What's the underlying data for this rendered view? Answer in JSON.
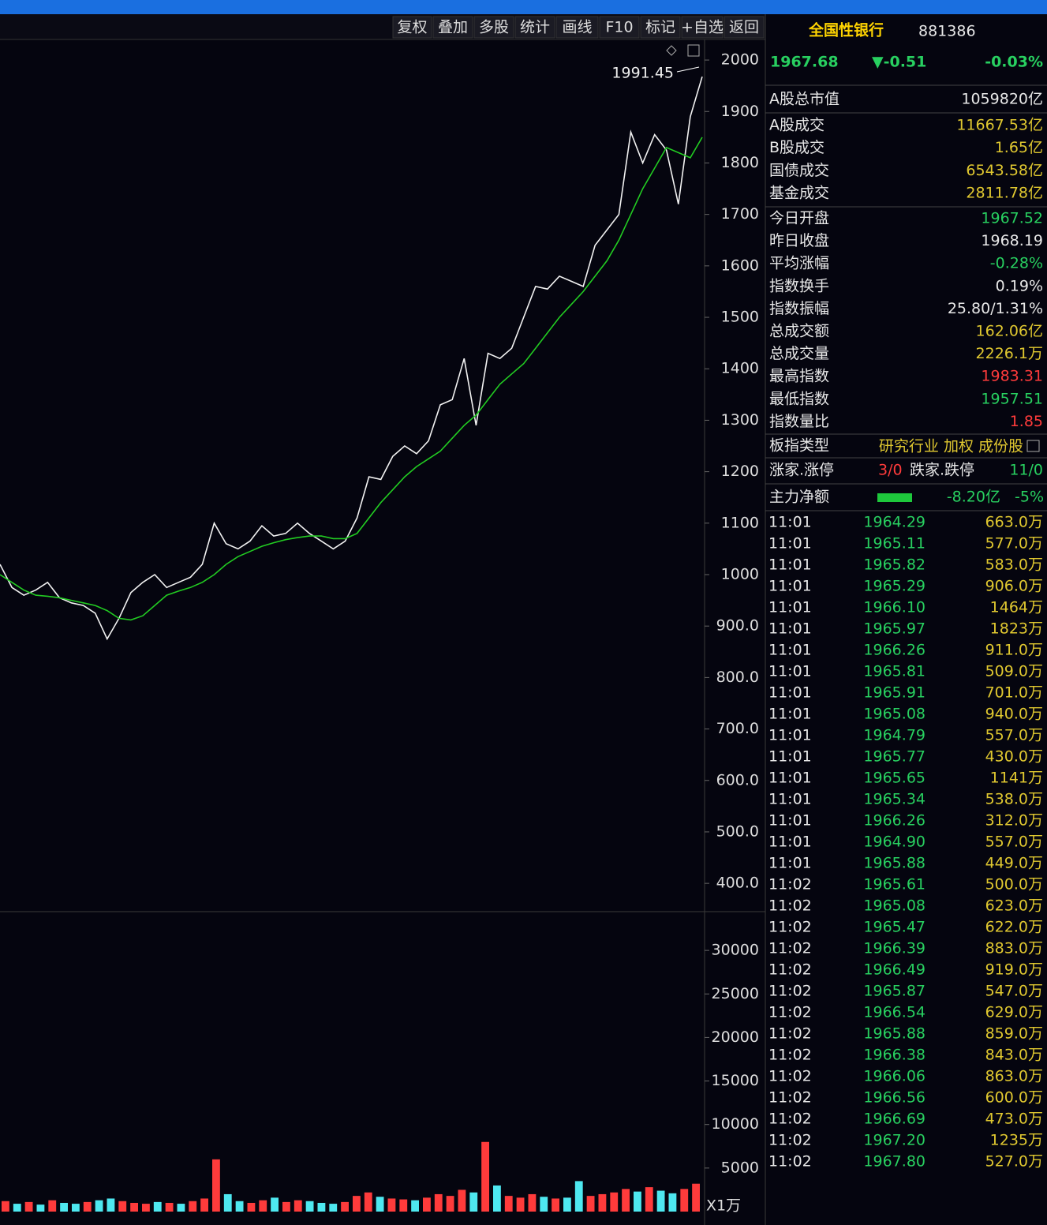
{
  "toolbar": [
    "复权",
    "叠加",
    "多股",
    "统计",
    "画线",
    "F10",
    "标记",
    "+自选",
    "返回"
  ],
  "quote": {
    "name": "全国性银行",
    "code": "881386",
    "price": "1967.68",
    "change": "▼-0.51",
    "change_pct": "-0.03%"
  },
  "stats": [
    {
      "label": "A股总市值",
      "value": "1059820亿",
      "color": "#e8e8e8"
    },
    {
      "label": "A股成交",
      "value": "11667.53亿",
      "color": "#e0c830"
    },
    {
      "label": "B股成交",
      "value": "1.65亿",
      "color": "#e0c830"
    },
    {
      "label": "国债成交",
      "value": "6543.58亿",
      "color": "#e0c830"
    },
    {
      "label": "基金成交",
      "value": "2811.78亿",
      "color": "#e0c830"
    },
    {
      "label": "今日开盘",
      "value": "1967.52",
      "color": "#28d060"
    },
    {
      "label": "昨日收盘",
      "value": "1968.19",
      "color": "#e8e8e8"
    },
    {
      "label": "平均涨幅",
      "value": "-0.28%",
      "color": "#28d060"
    },
    {
      "label": "指数换手",
      "value": "0.19%",
      "color": "#e8e8e8"
    },
    {
      "label": "指数振幅",
      "value": "25.80/1.31%",
      "color": "#e8e8e8"
    },
    {
      "label": "总成交额",
      "value": "162.06亿",
      "color": "#e0c830"
    },
    {
      "label": "总成交量",
      "value": "2226.1万",
      "color": "#e0c830"
    },
    {
      "label": "最高指数",
      "value": "1983.31",
      "color": "#ff3b3b"
    },
    {
      "label": "最低指数",
      "value": "1957.51",
      "color": "#28d060"
    },
    {
      "label": "指数量比",
      "value": "1.85",
      "color": "#ff3b3b"
    }
  ],
  "sector": {
    "label": "板指类型",
    "value": "研究行业 加权 成份股"
  },
  "limits": {
    "up_label": "涨家.涨停",
    "up": "3/0",
    "down_label": "跌家.跌停",
    "down": "11/0"
  },
  "main_flow": {
    "label": "主力净额",
    "value": "-8.20亿",
    "pct": "-5%"
  },
  "ticks": [
    [
      "11:01",
      "1964.29",
      "663.0万"
    ],
    [
      "11:01",
      "1965.11",
      "577.0万"
    ],
    [
      "11:01",
      "1965.82",
      "583.0万"
    ],
    [
      "11:01",
      "1965.29",
      "906.0万"
    ],
    [
      "11:01",
      "1966.10",
      "1464万"
    ],
    [
      "11:01",
      "1965.97",
      "1823万"
    ],
    [
      "11:01",
      "1966.26",
      "911.0万"
    ],
    [
      "11:01",
      "1965.81",
      "509.0万"
    ],
    [
      "11:01",
      "1965.91",
      "701.0万"
    ],
    [
      "11:01",
      "1965.08",
      "940.0万"
    ],
    [
      "11:01",
      "1964.79",
      "557.0万"
    ],
    [
      "11:01",
      "1965.77",
      "430.0万"
    ],
    [
      "11:01",
      "1965.65",
      "1141万"
    ],
    [
      "11:01",
      "1965.34",
      "538.0万"
    ],
    [
      "11:01",
      "1966.26",
      "312.0万"
    ],
    [
      "11:01",
      "1964.90",
      "557.0万"
    ],
    [
      "11:01",
      "1965.88",
      "449.0万"
    ],
    [
      "11:02",
      "1965.61",
      "500.0万"
    ],
    [
      "11:02",
      "1965.08",
      "623.0万"
    ],
    [
      "11:02",
      "1965.47",
      "622.0万"
    ],
    [
      "11:02",
      "1966.39",
      "883.0万"
    ],
    [
      "11:02",
      "1966.49",
      "919.0万"
    ],
    [
      "11:02",
      "1965.87",
      "547.0万"
    ],
    [
      "11:02",
      "1966.54",
      "629.0万"
    ],
    [
      "11:02",
      "1965.88",
      "859.0万"
    ],
    [
      "11:02",
      "1966.38",
      "843.0万"
    ],
    [
      "11:02",
      "1966.06",
      "863.0万"
    ],
    [
      "11:02",
      "1966.56",
      "600.0万"
    ],
    [
      "11:02",
      "1966.69",
      "473.0万"
    ],
    [
      "11:02",
      "1967.20",
      "1235万"
    ],
    [
      "11:02",
      "1967.80",
      "527.0万"
    ]
  ],
  "chart_data": [
    {
      "type": "line",
      "annotation": "1991.45",
      "ylim": [
        345,
        2040
      ],
      "yticks": [
        {
          "value": 400,
          "label": "400.0"
        },
        {
          "value": 500,
          "label": "500.0"
        },
        {
          "value": 600,
          "label": "600.0"
        },
        {
          "value": 700,
          "label": "700.0"
        },
        {
          "value": 800,
          "label": "800.0"
        },
        {
          "value": 900,
          "label": "900.0"
        },
        1000,
        1100,
        1200,
        1300,
        1400,
        1500,
        1600,
        1700,
        1800,
        1900,
        2000
      ],
      "series": [
        {
          "color": "#f2f2f2",
          "values": [
            1020,
            975,
            960,
            970,
            985,
            955,
            945,
            940,
            925,
            875,
            915,
            965,
            985,
            1000,
            975,
            985,
            995,
            1020,
            1100,
            1060,
            1050,
            1065,
            1095,
            1075,
            1080,
            1100,
            1080,
            1065,
            1050,
            1065,
            1110,
            1190,
            1185,
            1230,
            1250,
            1235,
            1260,
            1330,
            1340,
            1420,
            1290,
            1430,
            1420,
            1440,
            1500,
            1560,
            1555,
            1580,
            1570,
            1560,
            1640,
            1670,
            1700,
            1860,
            1800,
            1855,
            1825,
            1720,
            1890,
            1967.68
          ]
        },
        {
          "color": "#22cc22",
          "values": [
            1000,
            985,
            970,
            960,
            958,
            955,
            950,
            945,
            940,
            930,
            915,
            912,
            920,
            940,
            960,
            968,
            975,
            985,
            1000,
            1020,
            1035,
            1045,
            1055,
            1062,
            1068,
            1072,
            1075,
            1075,
            1070,
            1070,
            1080,
            1110,
            1140,
            1165,
            1190,
            1210,
            1225,
            1240,
            1265,
            1290,
            1310,
            1340,
            1370,
            1390,
            1410,
            1440,
            1470,
            1500,
            1525,
            1550,
            1580,
            1610,
            1650,
            1700,
            1750,
            1790,
            1830,
            1820,
            1810,
            1850
          ]
        }
      ]
    },
    {
      "type": "bar",
      "unit_label": "X1万",
      "ylim": [
        0,
        34000
      ],
      "yticks": [
        5000,
        10000,
        15000,
        20000,
        25000,
        30000
      ],
      "values": [
        1200,
        900,
        1100,
        800,
        1300,
        1000,
        900,
        1100,
        1300,
        1500,
        1200,
        1000,
        900,
        1100,
        1000,
        900,
        1200,
        1500,
        6000,
        2000,
        1200,
        1000,
        1300,
        1600,
        1100,
        1300,
        1200,
        1000,
        900,
        1100,
        1800,
        2200,
        1700,
        1500,
        1400,
        1300,
        1600,
        2000,
        1800,
        2500,
        2200,
        8000,
        3000,
        1800,
        1600,
        2000,
        1700,
        1500,
        1600,
        3500,
        1800,
        2000,
        2200,
        2600,
        2300,
        2800,
        2400,
        2100,
        2600,
        3200
      ],
      "colors": [
        "#ff3b3b",
        "#4ee8f0",
        "#ff3b3b",
        "#4ee8f0",
        "#ff3b3b",
        "#4ee8f0",
        "#4ee8f0",
        "#ff3b3b",
        "#4ee8f0",
        "#4ee8f0",
        "#ff3b3b",
        "#ff3b3b",
        "#ff3b3b",
        "#4ee8f0",
        "#ff3b3b",
        "#4ee8f0",
        "#ff3b3b",
        "#ff3b3b",
        "#ff3b3b",
        "#4ee8f0",
        "#4ee8f0",
        "#ff3b3b",
        "#ff3b3b",
        "#4ee8f0",
        "#ff3b3b",
        "#ff3b3b",
        "#4ee8f0",
        "#4ee8f0",
        "#4ee8f0",
        "#ff3b3b",
        "#ff3b3b",
        "#ff3b3b",
        "#4ee8f0",
        "#ff3b3b",
        "#ff3b3b",
        "#4ee8f0",
        "#ff3b3b",
        "#ff3b3b",
        "#ff3b3b",
        "#ff3b3b",
        "#4ee8f0",
        "#ff3b3b",
        "#4ee8f0",
        "#ff3b3b",
        "#ff3b3b",
        "#ff3b3b",
        "#4ee8f0",
        "#ff3b3b",
        "#4ee8f0",
        "#4ee8f0",
        "#ff3b3b",
        "#ff3b3b",
        "#ff3b3b",
        "#ff3b3b",
        "#4ee8f0",
        "#ff3b3b",
        "#4ee8f0",
        "#4ee8f0",
        "#ff3b3b",
        "#ff3b3b"
      ]
    }
  ]
}
